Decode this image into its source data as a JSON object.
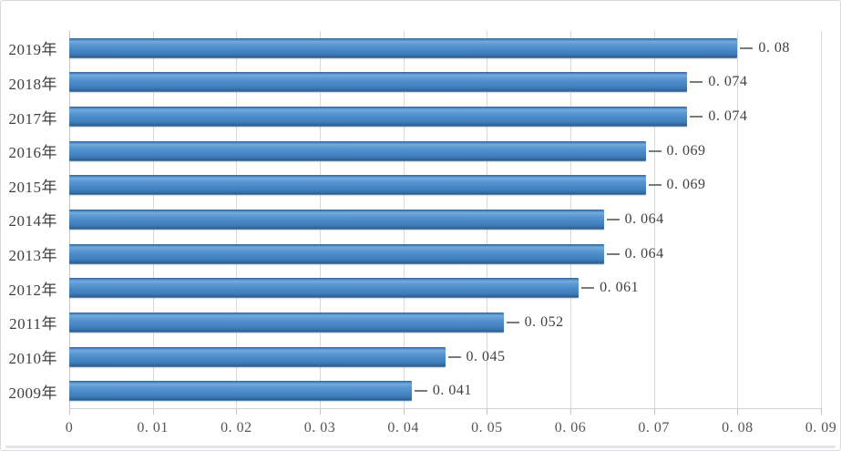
{
  "chart_data": {
    "type": "bar",
    "orientation": "horizontal",
    "title": "",
    "xlabel": "",
    "ylabel": "",
    "categories": [
      "2019年",
      "2018年",
      "2017年",
      "2016年",
      "2015年",
      "2014年",
      "2013年",
      "2012年",
      "2011年",
      "2010年",
      "2009年"
    ],
    "values": [
      0.08,
      0.074,
      0.074,
      0.069,
      0.069,
      0.064,
      0.064,
      0.061,
      0.052,
      0.045,
      0.041
    ],
    "value_labels": [
      "0. 08",
      "0. 074",
      "0. 074",
      "0. 069",
      "0. 069",
      "0. 064",
      "0. 064",
      "0. 061",
      "0. 052",
      "0. 045",
      "0. 041"
    ],
    "xlim": [
      0,
      0.09
    ],
    "x_tick_values": [
      0,
      0.01,
      0.02,
      0.03,
      0.04,
      0.05,
      0.06,
      0.07,
      0.08,
      0.09
    ],
    "x_tick_labels": [
      "0",
      "0. 01",
      "0. 02",
      "0. 03",
      "0. 04",
      "0. 05",
      "0. 06",
      "0. 07",
      "0. 08",
      "0. 09"
    ],
    "grid": "vertical-major-only",
    "legend": "none",
    "data_labels": "outside-end-with-leader-lines",
    "colors": {
      "bar": "#4a87c6",
      "bar_gradient_highlight": "#74aadf",
      "bar_gradient_shadow": "#2e6194",
      "gridline": "#d9d9d9",
      "zero_axis_line": "#c6c6c6",
      "category_text": "#3f3f3f",
      "value_text": "#3f3f3f",
      "tick_text": "#555555",
      "leader_line": "#7a7a7a",
      "frame_border": "#d9d9d9",
      "background": "#ffffff"
    }
  }
}
